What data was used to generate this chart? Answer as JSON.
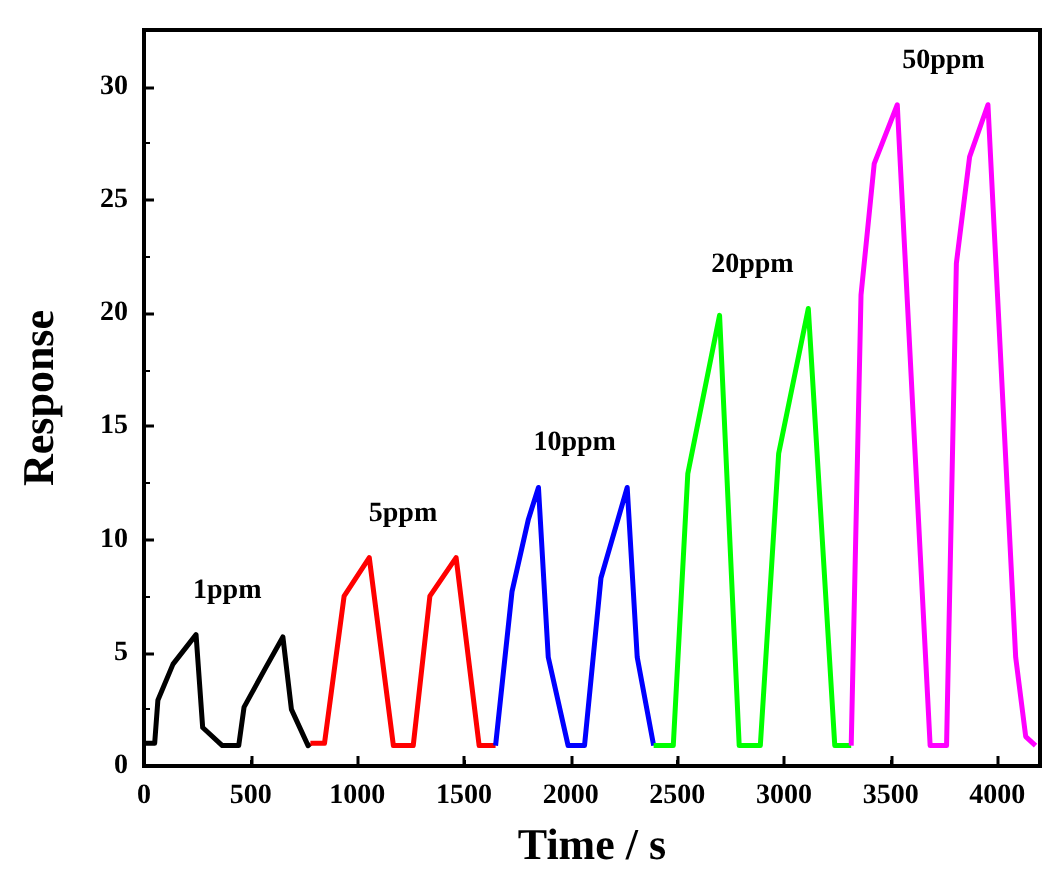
{
  "chart_data": {
    "type": "line",
    "xlabel": "Time / s",
    "ylabel": "Response",
    "xlim": [
      0,
      4200
    ],
    "ylim": [
      0,
      32.5
    ],
    "xticks": [
      0,
      500,
      1000,
      1500,
      2000,
      2500,
      3000,
      3500,
      4000
    ],
    "yticks": [
      0,
      5,
      10,
      15,
      20,
      25,
      30
    ],
    "grid": false,
    "marker": "none",
    "series": [
      {
        "color": "#000000",
        "x": [
          0,
          50,
          65,
          136,
          244,
          275,
          367,
          444,
          469,
          568,
          651,
          691,
          769,
          780
        ],
        "values": [
          1,
          1,
          2.9,
          4.5,
          5.8,
          1.7,
          0.9,
          0.9,
          2.6,
          4.3,
          5.7,
          2.5,
          0.9,
          1
        ]
      },
      {
        "color": "#ff0000",
        "x": [
          780,
          846,
          938,
          1056,
          1169,
          1262,
          1340,
          1463,
          1571,
          1648
        ],
        "values": [
          1,
          1,
          7.5,
          9.2,
          0.9,
          0.9,
          7.5,
          9.2,
          0.9,
          0.9
        ]
      },
      {
        "color": "#0000ff",
        "x": [
          1648,
          1725,
          1802,
          1849,
          1895,
          1988,
          2065,
          2142,
          2265,
          2312,
          2389
        ],
        "values": [
          0.9,
          7.7,
          10.9,
          12.3,
          4.8,
          0.9,
          0.9,
          8.3,
          12.3,
          4.8,
          0.9
        ]
      },
      {
        "color": "#00ff00",
        "x": [
          2389,
          2481,
          2549,
          2698,
          2790,
          2889,
          2975,
          3114,
          3238,
          3315
        ],
        "values": [
          0.9,
          0.9,
          12.9,
          19.9,
          0.9,
          0.9,
          13.8,
          20.2,
          0.9,
          0.9
        ]
      },
      {
        "color": "#ff00ff",
        "x": [
          3315,
          3361,
          3423,
          3531,
          3639,
          3685,
          3762,
          3808,
          3870,
          3956,
          4086,
          4133,
          4179
        ],
        "values": [
          0.9,
          20.8,
          26.6,
          29.2,
          9.3,
          0.9,
          0.9,
          22.2,
          26.9,
          29.2,
          4.8,
          1.3,
          0.9
        ]
      }
    ],
    "annotations": [
      "1ppm",
      "5ppm",
      "10ppm",
      "20ppm",
      "50ppm"
    ]
  }
}
